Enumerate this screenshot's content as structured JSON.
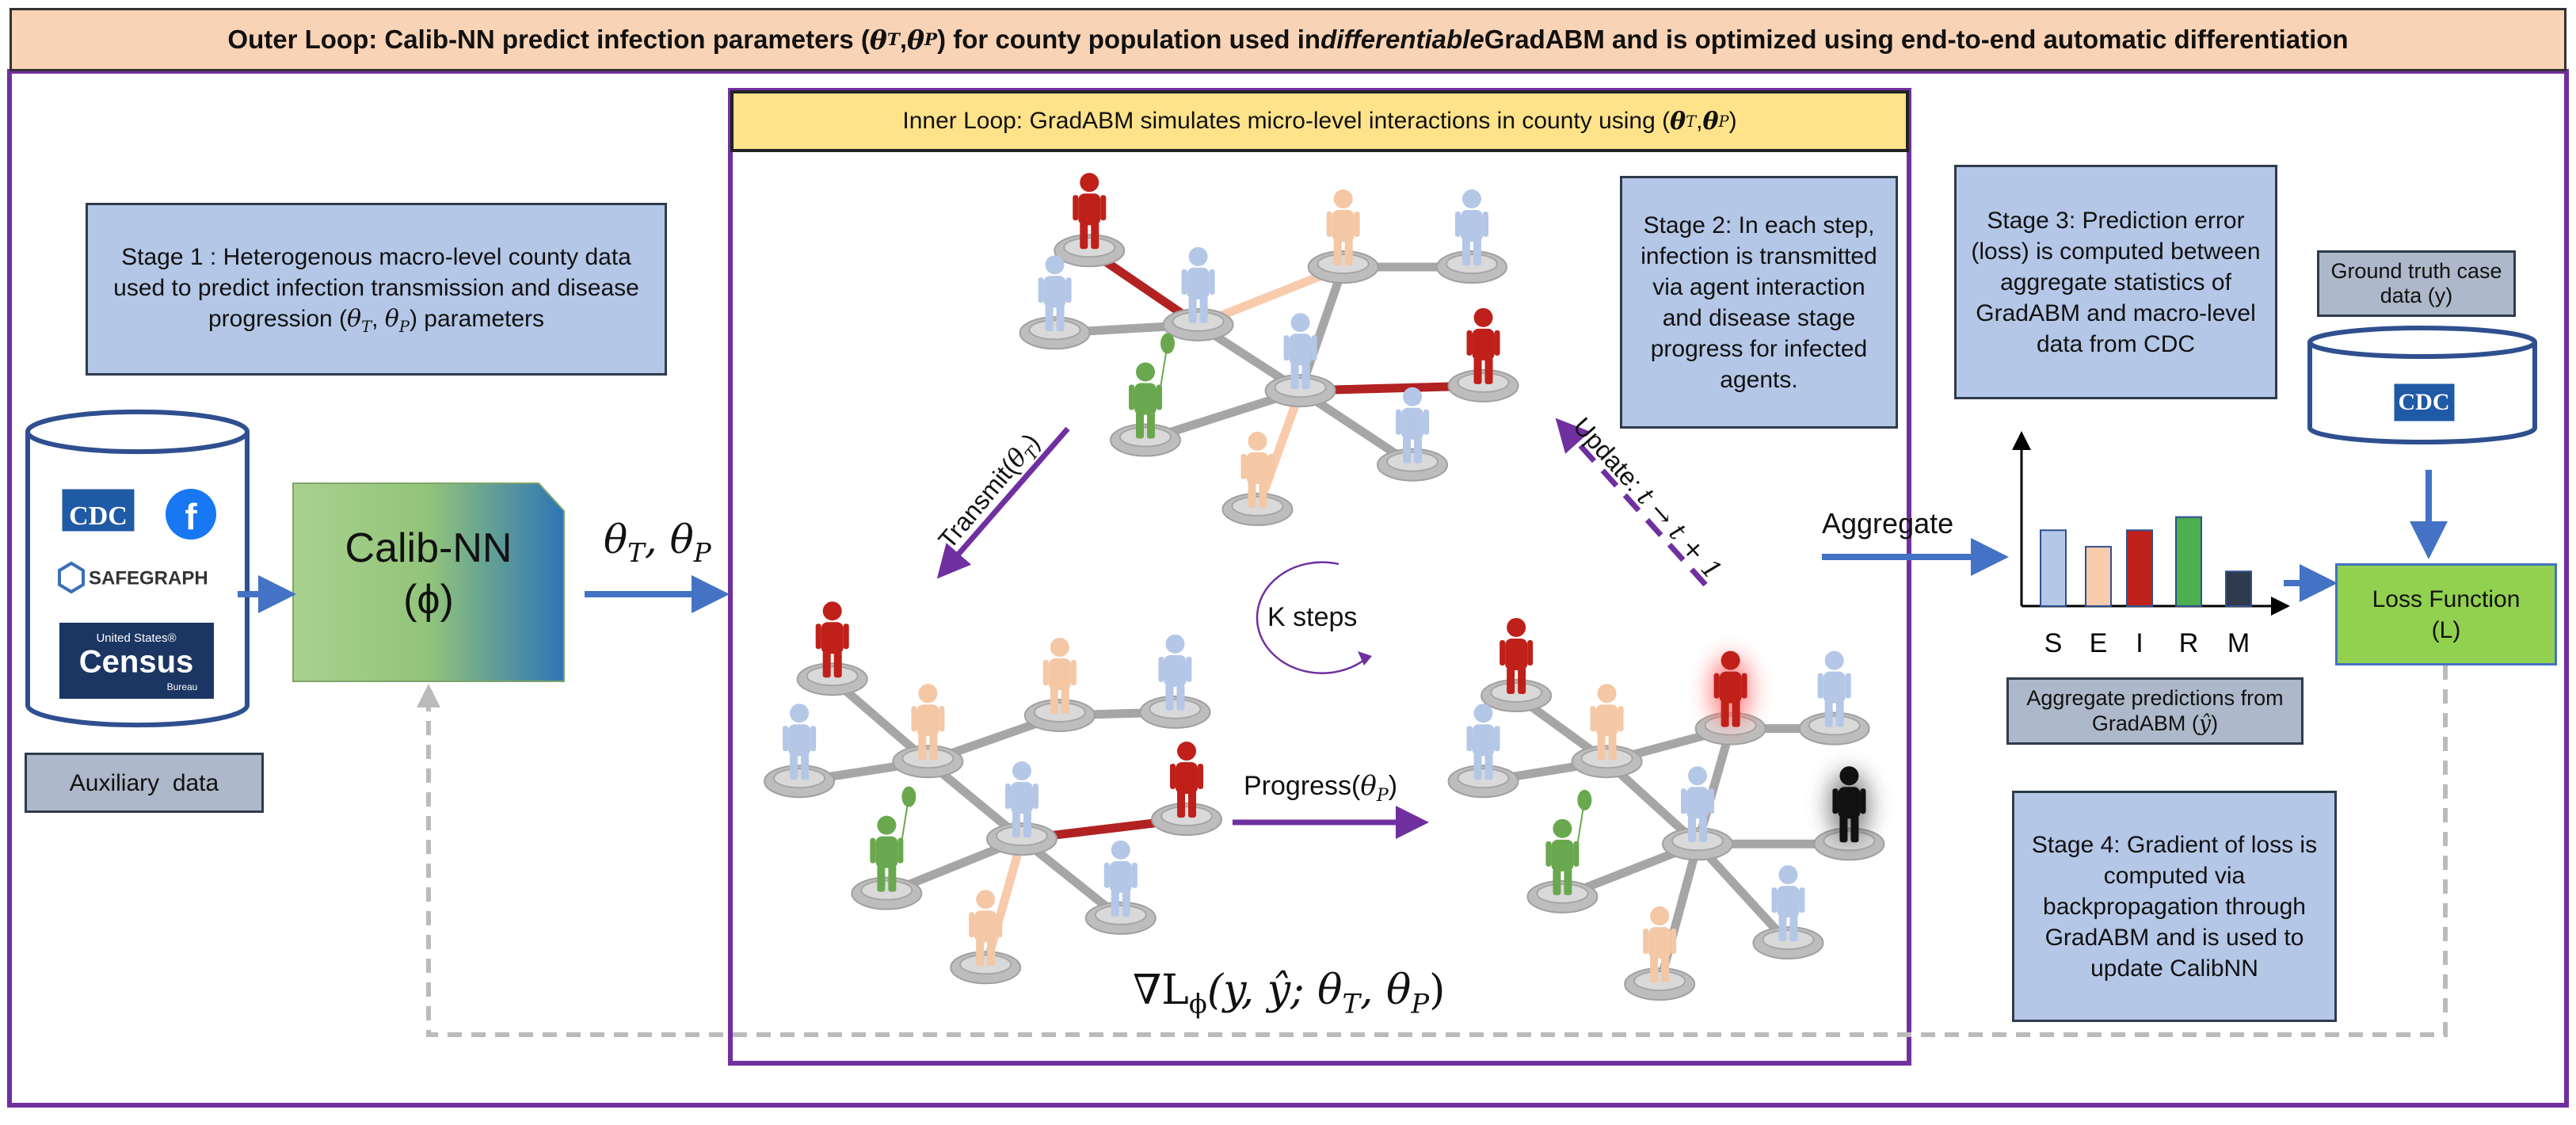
{
  "outer_loop": [
    "Outer Loop: Calib-NN predict infection parameters (",
    "θ",
    "T",
    ", ",
    "θ",
    "P",
    " ) for county population used in ",
    "differentiable",
    " GradABM and is optimized using end-to-end automatic differentiation"
  ],
  "inner_loop": [
    "Inner Loop: GradABM simulates micro-level interactions in county using (",
    "θ",
    "T",
    ", ",
    "θ",
    "P",
    " )"
  ],
  "stage1": [
    "Stage 1 : Heterogenous macro-level county data used to predict infection transmission and disease progression (",
    "θ",
    "T",
    ", ",
    "θ",
    "P",
    ") parameters"
  ],
  "data_sources": {
    "cdc": "CDC",
    "facebook": "f",
    "safegraph": "SAFEGRAPH",
    "census_top": "United States®",
    "census": "Census",
    "census_bottom": "Bureau"
  },
  "auxiliary": "Auxiliary  data",
  "calib_nn": {
    "name": "Calib-NN",
    "symbol": "(ϕ)"
  },
  "params": [
    "θ",
    "T",
    ", θ",
    "P"
  ],
  "stage2": "Stage 2: In each step, infection is transmitted via agent interaction and disease stage progress for infected agents.",
  "transmit": [
    "Transmit(",
    "θ",
    "T",
    ")"
  ],
  "update": [
    "Update: ",
    "t → t + 1"
  ],
  "k_steps": "K steps",
  "progress": [
    "Progress(",
    "θ",
    "P",
    ")"
  ],
  "gradient": [
    "∇L",
    "ϕ",
    "(y, ŷ; θ",
    "T",
    ", θ",
    "P",
    ")"
  ],
  "aggregate": "Aggregate",
  "stage3": "Stage 3: Prediction error (loss) is computed between aggregate statistics of GradABM and macro-level data from CDC",
  "aggregate_chart": {
    "categories": [
      "S",
      "E",
      "I",
      "R",
      "M"
    ],
    "values": [
      46,
      36,
      46,
      54,
      21
    ],
    "colors": [
      "#b4c7e7",
      "#f8cbad",
      "#c0201a",
      "#4caf50",
      "#2f3b4c"
    ]
  },
  "aggregate_predictions": [
    "Aggregate predictions from GradABM (",
    "ŷ",
    ")"
  ],
  "ground_truth": "Ground truth case data (y)",
  "cdc": "CDC",
  "loss_function": [
    "Loss Function",
    "(L)"
  ],
  "stage4": "Stage 4: Gradient of loss is computed via backpropagation through GradABM and is used to update CalibNN"
}
